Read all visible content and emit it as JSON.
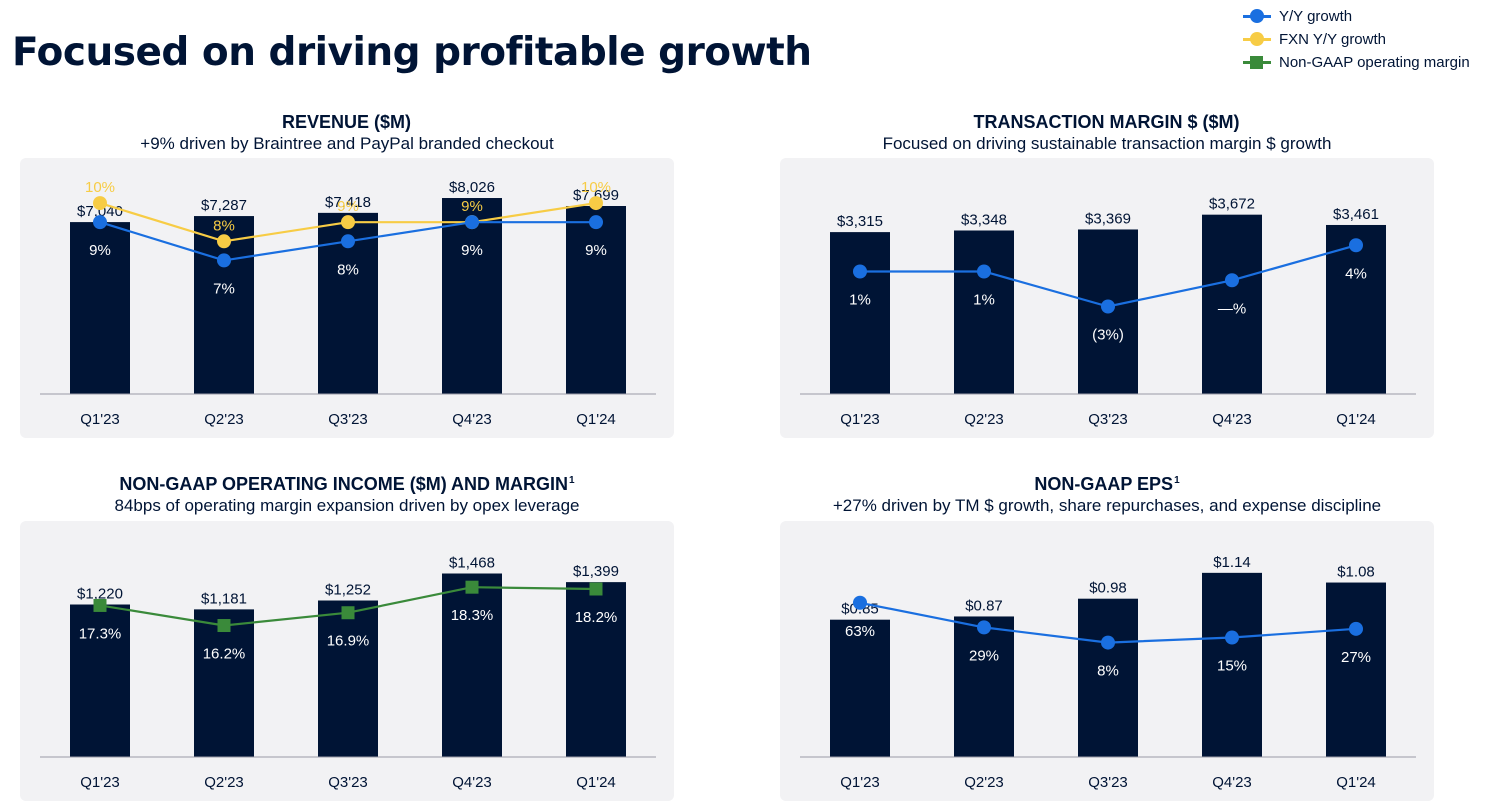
{
  "page": {
    "title": "Focused on driving profitable growth"
  },
  "legend": [
    {
      "label": "Y/Y growth",
      "color": "#1a6fe0",
      "marker": "circle"
    },
    {
      "label": "FXN Y/Y growth",
      "color": "#f7cc45",
      "marker": "circle"
    },
    {
      "label": "Non-GAAP operating margin",
      "color": "#3a8a3a",
      "marker": "square"
    }
  ],
  "panels": {
    "revenue": {
      "title": "REVENUE ($M)",
      "superscript": "",
      "subtitle": "+9% driven by Braintree and PayPal branded checkout"
    },
    "transaction_margin": {
      "title": "TRANSACTION MARGIN $ ($M)",
      "superscript": "",
      "subtitle": "Focused on driving sustainable transaction margin $ growth"
    },
    "operating_income": {
      "title": "NON-GAAP OPERATING INCOME ($M) AND MARGIN",
      "superscript": "1",
      "subtitle": "84bps of operating margin expansion driven by opex leverage"
    },
    "eps": {
      "title": "NON-GAAP EPS",
      "superscript": "1",
      "subtitle": "+27% driven by TM $ growth, share repurchases, and expense discipline"
    }
  },
  "chart_data": [
    {
      "type": "bar",
      "title": "REVENUE ($M)",
      "categories": [
        "Q1'23",
        "Q2'23",
        "Q3'23",
        "Q4'23",
        "Q1'24"
      ],
      "values": [
        7040,
        7287,
        7418,
        8026,
        7699
      ],
      "value_labels": [
        "$7,040",
        "$7,287",
        "$7,418",
        "$8,026",
        "$7,699"
      ],
      "bar_color": "#001435",
      "ylim": [
        0,
        8600
      ],
      "grid": false,
      "lines": [
        {
          "name": "FXN Y/Y growth",
          "color": "#f7cc45",
          "marker": "circle",
          "values": [
            10,
            8,
            9,
            9,
            10
          ],
          "labels": [
            "10%",
            "8%",
            "9%",
            "9%",
            "10%"
          ],
          "label_position": "above",
          "label_color": "#f7cc45"
        },
        {
          "name": "Y/Y growth",
          "color": "#1a6fe0",
          "marker": "circle",
          "values": [
            9,
            7,
            8,
            9,
            9
          ],
          "labels": [
            "9%",
            "7%",
            "8%",
            "9%",
            "9%"
          ],
          "label_position": "below",
          "label_color": "#ffffff"
        }
      ],
      "line_ylim": [
        0,
        11
      ]
    },
    {
      "type": "bar",
      "title": "TRANSACTION MARGIN $ ($M)",
      "categories": [
        "Q1'23",
        "Q2'23",
        "Q3'23",
        "Q4'23",
        "Q1'24"
      ],
      "values": [
        3315,
        3348,
        3369,
        3672,
        3461
      ],
      "value_labels": [
        "$3,315",
        "$3,348",
        "$3,369",
        "$3,672",
        "$3,461"
      ],
      "bar_color": "#001435",
      "ylim": [
        0,
        4300
      ],
      "grid": false,
      "lines": [
        {
          "name": "Y/Y growth",
          "color": "#1a6fe0",
          "marker": "circle",
          "values": [
            1,
            1,
            -3,
            0,
            4
          ],
          "labels": [
            "1%",
            "1%",
            "(3%)",
            "—%",
            "4%"
          ],
          "label_position": "below",
          "label_color": "#ffffff"
        }
      ],
      "line_ylim": [
        -13,
        11
      ]
    },
    {
      "type": "bar",
      "title": "NON-GAAP OPERATING INCOME ($M) AND MARGIN",
      "categories": [
        "Q1'23",
        "Q2'23",
        "Q3'23",
        "Q4'23",
        "Q1'24"
      ],
      "values": [
        1220,
        1181,
        1252,
        1468,
        1399
      ],
      "value_labels": [
        "$1,220",
        "$1,181",
        "$1,252",
        "$1,468",
        "$1,399"
      ],
      "bar_color": "#001435",
      "ylim": [
        0,
        1680
      ],
      "grid": false,
      "lines": [
        {
          "name": "Non-GAAP operating margin",
          "color": "#3a8a3a",
          "marker": "square",
          "values": [
            17.3,
            16.2,
            16.9,
            18.3,
            18.2
          ],
          "labels": [
            "17.3%",
            "16.2%",
            "16.9%",
            "18.3%",
            "18.2%"
          ],
          "label_position": "below",
          "label_color": "#ffffff"
        }
      ],
      "line_ylim": [
        9,
        20.5
      ]
    },
    {
      "type": "bar",
      "title": "NON-GAAP EPS",
      "categories": [
        "Q1'23",
        "Q2'23",
        "Q3'23",
        "Q4'23",
        "Q1'24"
      ],
      "values": [
        0.85,
        0.87,
        0.98,
        1.14,
        1.08
      ],
      "value_labels": [
        "$0.85",
        "$0.87",
        "$0.98",
        "$1.14",
        "$1.08"
      ],
      "bar_color": "#001435",
      "ylim": [
        0,
        1.3
      ],
      "grid": false,
      "lines": [
        {
          "name": "Y/Y growth",
          "color": "#1a6fe0",
          "marker": "circle",
          "values": [
            63,
            29,
            8,
            15,
            27
          ],
          "labels": [
            "63%",
            "29%",
            "8%",
            "15%",
            "27%"
          ],
          "label_position": "below",
          "label_color": "#ffffff"
        }
      ],
      "line_ylim": [
        -150,
        140
      ]
    }
  ]
}
